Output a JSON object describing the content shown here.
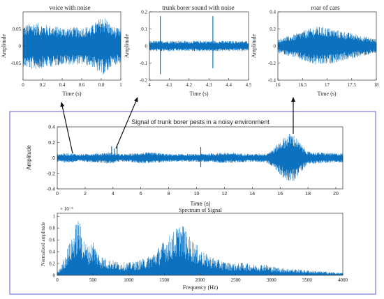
{
  "colors": {
    "signal": "#0c72bf",
    "axis": "#333333",
    "frame": "#5b5bd6",
    "arrow": "#111111"
  },
  "chart_data": [
    {
      "id": "voice",
      "type": "line",
      "title": "voice with noise",
      "xlabel": "Time (s)",
      "ylabel": "Amplitude",
      "xlim": [
        0,
        1
      ],
      "ylim": [
        -0.1,
        0.1
      ],
      "xticks": [
        0,
        0.2,
        0.4,
        0.6,
        0.8,
        1
      ],
      "xtick_labels": [
        "0",
        "0.2",
        "0.4",
        "0.6",
        "0.8",
        "1"
      ],
      "yticks": [
        -0.05,
        0,
        0.05
      ],
      "ytick_labels": [
        "-0.05",
        "0",
        "0.05"
      ],
      "envelope": {
        "x": [
          0,
          0.1,
          0.2,
          0.3,
          0.4,
          0.5,
          0.6,
          0.7,
          0.8,
          0.85,
          0.9,
          1.0
        ],
        "amplitude": [
          0.06,
          0.07,
          0.065,
          0.06,
          0.055,
          0.055,
          0.055,
          0.06,
          0.085,
          0.085,
          0.06,
          0.05
        ]
      },
      "spikes": []
    },
    {
      "id": "borer",
      "type": "line",
      "title": "trunk borer sound with noise",
      "xlabel": "Time (s)",
      "ylabel": "Amplitude",
      "xlim": [
        4,
        4.5
      ],
      "ylim": [
        -0.2,
        0.2
      ],
      "xticks": [
        4,
        4.1,
        4.2,
        4.3,
        4.4,
        4.5
      ],
      "xtick_labels": [
        "4",
        "4.1",
        "4.2",
        "4.3",
        "4.4",
        "4.5"
      ],
      "yticks": [
        -0.2,
        -0.1,
        0,
        0.1,
        0.2
      ],
      "ytick_labels": [
        "-0.2",
        "-0.1",
        "0",
        "0.1",
        "0.2"
      ],
      "envelope": {
        "x": [
          4.0,
          4.1,
          4.2,
          4.3,
          4.4,
          4.5
        ],
        "amplitude": [
          0.03,
          0.032,
          0.03,
          0.032,
          0.03,
          0.03
        ]
      },
      "spikes": [
        {
          "x": 4.055,
          "min": -0.165,
          "max": 0.175
        },
        {
          "x": 4.32,
          "min": -0.13,
          "max": 0.175
        }
      ]
    },
    {
      "id": "cars",
      "type": "line",
      "title": "roar of cars",
      "xlabel": "Time (s)",
      "ylabel": "Amplitude",
      "xlim": [
        16,
        18
      ],
      "ylim": [
        -0.4,
        0.4
      ],
      "xticks": [
        16,
        16.5,
        17,
        17.5,
        18
      ],
      "xtick_labels": [
        "16",
        "16.5",
        "17",
        "17.5",
        "18"
      ],
      "yticks": [
        -0.4,
        -0.2,
        0,
        0.2,
        0.4
      ],
      "ytick_labels": [
        "-0.4",
        "-0.2",
        "0",
        "0.2",
        "0.4"
      ],
      "envelope": {
        "x": [
          16.0,
          16.3,
          16.6,
          16.8,
          17.0,
          17.2,
          17.5,
          17.8,
          18.0
        ],
        "amplitude": [
          0.08,
          0.13,
          0.2,
          0.23,
          0.22,
          0.19,
          0.15,
          0.11,
          0.08
        ]
      },
      "spikes": []
    },
    {
      "id": "main",
      "type": "line",
      "title": "Signal of trunk borer pests in a noisy environment",
      "xlabel": "Time (s)",
      "ylabel": "Amplitude",
      "xlim": [
        0,
        20.5
      ],
      "ylim": [
        -0.4,
        0.4
      ],
      "xticks": [
        0,
        2,
        4,
        6,
        8,
        10,
        12,
        14,
        16,
        18,
        20
      ],
      "xtick_labels": [
        "0",
        "2",
        "4",
        "6",
        "8",
        "10",
        "12",
        "14",
        "16",
        "18",
        "20"
      ],
      "yticks": [
        -0.4,
        -0.2,
        0,
        0.2,
        0.4
      ],
      "ytick_labels": [
        "-0.4",
        "-0.2",
        "0",
        "0.2",
        "0.4"
      ],
      "envelope": {
        "x": [
          0,
          0.5,
          1.0,
          1.5,
          2.0,
          2.5,
          3.0,
          3.5,
          4.0,
          4.5,
          5.0,
          5.5,
          6.0,
          7.0,
          7.5,
          8.0,
          9.0,
          10.0,
          11.0,
          12.0,
          13.0,
          14.0,
          15.0,
          15.5,
          16.0,
          16.5,
          16.8,
          17.0,
          17.5,
          18.0,
          19.0,
          20.0,
          20.5
        ],
        "amplitude": [
          0.05,
          0.06,
          0.06,
          0.05,
          0.05,
          0.06,
          0.06,
          0.07,
          0.07,
          0.05,
          0.05,
          0.06,
          0.07,
          0.07,
          0.06,
          0.05,
          0.05,
          0.05,
          0.06,
          0.07,
          0.06,
          0.05,
          0.06,
          0.12,
          0.22,
          0.3,
          0.33,
          0.3,
          0.18,
          0.08,
          0.07,
          0.06,
          0.06
        ]
      },
      "spikes": [
        {
          "x": 3.9,
          "min": -0.02,
          "max": 0.15
        },
        {
          "x": 4.3,
          "min": -0.02,
          "max": 0.15
        },
        {
          "x": 4.1,
          "min": -0.02,
          "max": 0.12
        },
        {
          "x": 10.3,
          "min": -0.12,
          "max": 0.14
        }
      ]
    },
    {
      "id": "spectrum",
      "type": "area",
      "title": "Spectrum of Signal",
      "xlabel": "Frequency (Hz)",
      "ylabel": "Normalized amplitude",
      "y_exponent": "× 10⁻³",
      "xlim": [
        0,
        4000
      ],
      "ylim": [
        0,
        1.05
      ],
      "xticks": [
        0,
        500,
        1000,
        1500,
        2000,
        2500,
        3000,
        3500,
        4000
      ],
      "xtick_labels": [
        "0",
        "500",
        "1000",
        "1500",
        "2000",
        "2500",
        "3000",
        "3500",
        "4000"
      ],
      "yticks": [
        0,
        0.2,
        0.4,
        0.6,
        0.8,
        1
      ],
      "ytick_labels": [
        "0",
        "0.2",
        "0.4",
        "0.6",
        "0.8",
        "1"
      ],
      "envelope": {
        "x": [
          0,
          50,
          100,
          150,
          200,
          250,
          300,
          350,
          400,
          450,
          500,
          550,
          600,
          700,
          800,
          900,
          1000,
          1100,
          1200,
          1300,
          1400,
          1500,
          1600,
          1700,
          1750,
          1800,
          1900,
          2000,
          2100,
          2200,
          2300,
          2400,
          2500,
          2600,
          2700,
          2800,
          2900,
          3000,
          3200,
          3400,
          3600,
          3800,
          4000
        ],
        "amplitude": [
          0.05,
          0.15,
          0.3,
          0.5,
          0.62,
          0.85,
          1.0,
          0.72,
          0.55,
          0.5,
          0.62,
          0.45,
          0.35,
          0.28,
          0.25,
          0.22,
          0.22,
          0.24,
          0.28,
          0.34,
          0.45,
          0.6,
          0.72,
          0.85,
          0.92,
          0.75,
          0.6,
          0.45,
          0.35,
          0.3,
          0.25,
          0.22,
          0.2,
          0.22,
          0.2,
          0.18,
          0.2,
          0.15,
          0.12,
          0.1,
          0.08,
          0.06,
          0.04
        ]
      },
      "spikes": []
    }
  ]
}
